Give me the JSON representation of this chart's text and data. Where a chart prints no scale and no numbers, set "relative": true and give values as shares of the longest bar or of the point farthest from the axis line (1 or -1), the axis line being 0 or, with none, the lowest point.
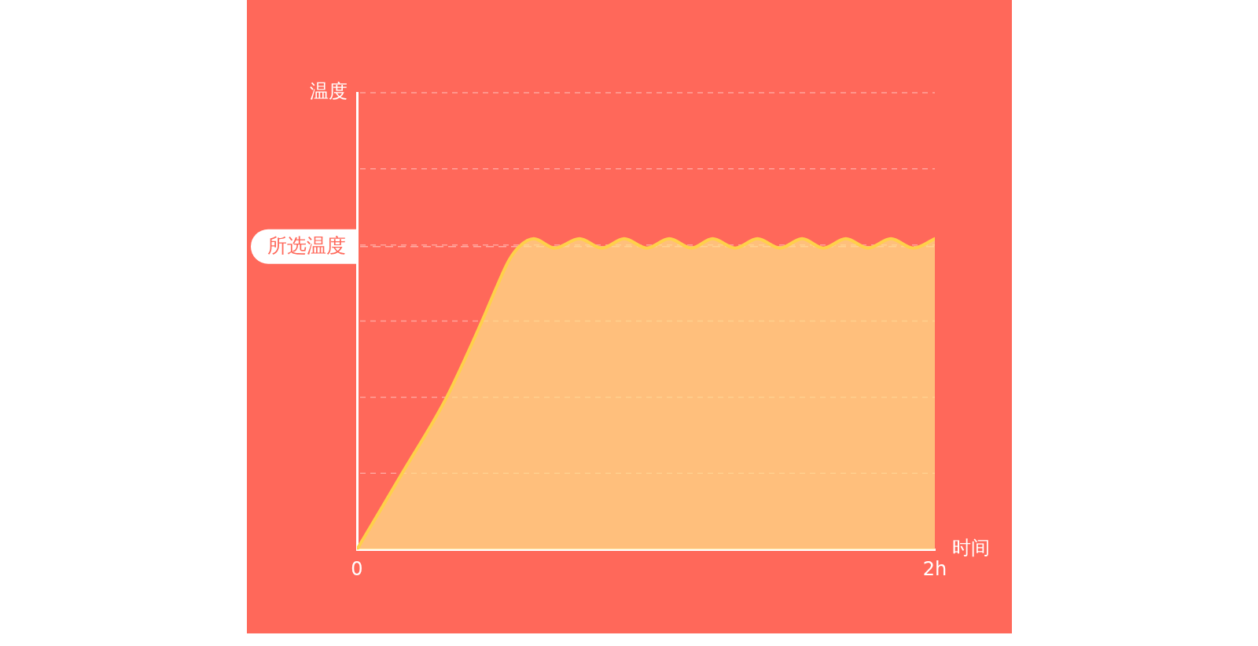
{
  "chart_data": {
    "type": "area",
    "xlabel": "时间",
    "annotations": [
      "温度"
    ],
    "relative": true,
    "x": [
      0,
      0.08,
      0.155,
      0.309,
      0.431,
      0.483,
      0.525,
      0.562,
      0.612,
      0.684,
      0.77,
      0.848,
      0.925,
      1.003,
      1.081,
      1.158,
      1.231,
      1.309,
      1.386,
      1.464,
      1.541,
      1.614,
      1.692,
      1.769,
      1.848,
      1.925,
      2.0
    ],
    "series": [
      {
        "color": "#ffd04a",
        "values": [
          0,
          0.125,
          0.243,
          0.487,
          0.731,
          0.844,
          0.929,
          0.975,
          1,
          0.97,
          1,
          0.97,
          1,
          0.97,
          1,
          0.97,
          1,
          0.97,
          1,
          0.97,
          1,
          0.97,
          1,
          0.97,
          1,
          0.97,
          1
        ]
      }
    ],
    "xlim": [
      0,
      2
    ],
    "xticks": [
      {
        "value": 0,
        "label": "0"
      },
      {
        "value": 2,
        "label": "2h"
      }
    ],
    "ref_lines": [
      {
        "axis": "y",
        "value": 0.975,
        "label": "所选温度"
      }
    ],
    "grid": "y",
    "marker": "none"
  }
}
